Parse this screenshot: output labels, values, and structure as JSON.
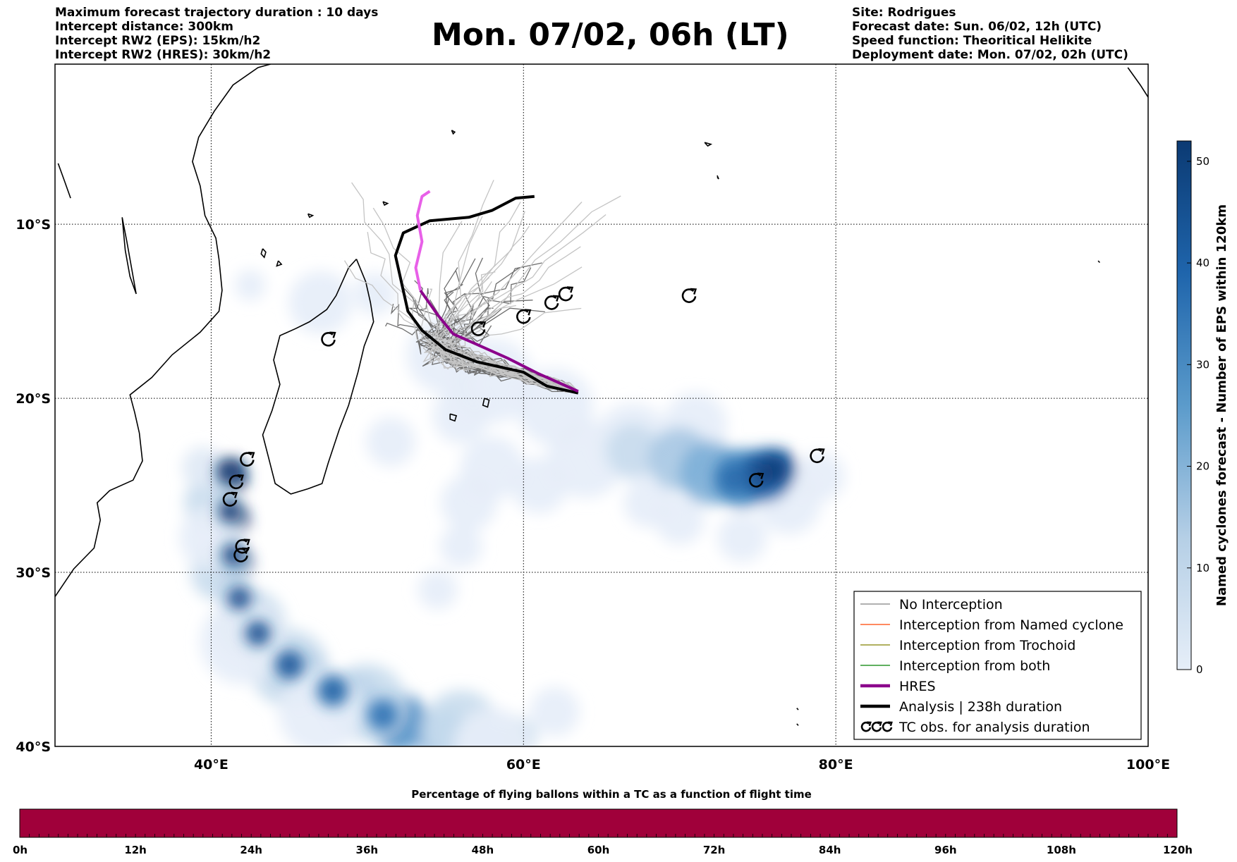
{
  "header_left": {
    "line1": "Maximum forecast trajectory duration : 10 days",
    "line2": "Intercept distance: 300km",
    "line3": "Intercept RW2 (EPS):  15km/h2",
    "line4": "Intercept RW2 (HRES): 30km/h2"
  },
  "title": "Mon. 07/02, 06h (LT)",
  "header_right": {
    "line1": "Site: Rodrigues",
    "line2": "Forecast date: Sun. 06/02, 12h (UTC)",
    "line3": "Speed function: Theoritical Helikite",
    "line4": "Deployment date: Mon. 07/02, 02h (UTC)"
  },
  "map": {
    "lon_range": [
      30,
      100
    ],
    "lat_range": [
      -40,
      -0.8
    ],
    "lat_ticks": [
      {
        "value": -10,
        "label": "10°S"
      },
      {
        "value": -20,
        "label": "20°S"
      },
      {
        "value": -30,
        "label": "30°S"
      },
      {
        "value": -40,
        "label": "40°S"
      }
    ],
    "lon_ticks": [
      {
        "value": 40,
        "label": "40°E"
      },
      {
        "value": 60,
        "label": "60°E"
      },
      {
        "value": 80,
        "label": "80°E"
      },
      {
        "value": 100,
        "label": "100°E"
      }
    ],
    "grid": "dotted"
  },
  "legend": {
    "placement": "lower-right",
    "entries": [
      {
        "label": "No Interception",
        "color": "#808080",
        "style": "thin"
      },
      {
        "label": "Interception from Named cyclone",
        "color": "#ff4500",
        "style": "thin"
      },
      {
        "label": "Interception from Trochoid",
        "color": "#808000",
        "style": "thin"
      },
      {
        "label": "Interception from both",
        "color": "#008000",
        "style": "thin"
      },
      {
        "label": "HRES",
        "color": "#8b008b",
        "style": "thick"
      },
      {
        "label": "Analysis | 238h duration",
        "color": "#000000",
        "style": "thick"
      },
      {
        "label": "TC obs. for analysis duration",
        "color": "#000000",
        "style": "symbol"
      }
    ]
  },
  "colorbar": {
    "label": "Named cyclones forecast - Number of EPS within 120km",
    "ticks": [
      0,
      10,
      20,
      30,
      40,
      50
    ],
    "max": 52,
    "colors": [
      "#e6eef8",
      "#0b3a73"
    ]
  },
  "percentage_bar": {
    "title": "Percentage of flying ballons within a TC as a function of flight time",
    "ticks": [
      "0h",
      "12h",
      "24h",
      "36h",
      "48h",
      "60h",
      "72h",
      "84h",
      "96h",
      "108h",
      "120h"
    ],
    "fill_color": "#a0003a"
  },
  "hres_track": {
    "color": "#8b008b",
    "tail_color": "#e860e8",
    "points": [
      [
        63.5,
        -19.6
      ],
      [
        61,
        -18.6
      ],
      [
        59,
        -17.7
      ],
      [
        57,
        -16.9
      ],
      [
        55.5,
        -16.3
      ],
      [
        54.5,
        -15.2
      ],
      [
        53.4,
        -13.8
      ],
      [
        53.1,
        -12.5
      ],
      [
        53.5,
        -11
      ],
      [
        53.2,
        -9.5
      ],
      [
        53.5,
        -8.4
      ],
      [
        54,
        -8.1
      ]
    ]
  },
  "analysis_track": {
    "color": "#000000",
    "points": [
      [
        63.5,
        -19.7
      ],
      [
        61.5,
        -19.3
      ],
      [
        60,
        -18.5
      ],
      [
        57,
        -17.9
      ],
      [
        55,
        -17.2
      ],
      [
        53.5,
        -16.1
      ],
      [
        52.6,
        -15
      ],
      [
        52.1,
        -13
      ],
      [
        51.8,
        -11.8
      ],
      [
        52.3,
        -10.5
      ],
      [
        54,
        -9.8
      ],
      [
        56.5,
        -9.6
      ],
      [
        58,
        -9.2
      ],
      [
        59.5,
        -8.5
      ],
      [
        60.7,
        -8.4
      ]
    ]
  },
  "tc_observations": [
    {
      "lon": 47.5,
      "lat": -16.6
    },
    {
      "lon": 57.1,
      "lat": -16.0
    },
    {
      "lon": 60.0,
      "lat": -15.3
    },
    {
      "lon": 61.8,
      "lat": -14.5
    },
    {
      "lon": 62.7,
      "lat": -14.0
    },
    {
      "lon": 70.6,
      "lat": -14.1
    },
    {
      "lon": 78.8,
      "lat": -23.3
    },
    {
      "lon": 74.9,
      "lat": -24.7
    },
    {
      "lon": 42.3,
      "lat": -23.5
    },
    {
      "lon": 41.6,
      "lat": -24.8
    },
    {
      "lon": 41.2,
      "lat": -25.8
    },
    {
      "lon": 42.0,
      "lat": -28.5
    },
    {
      "lon": 41.9,
      "lat": -29.0
    }
  ]
}
